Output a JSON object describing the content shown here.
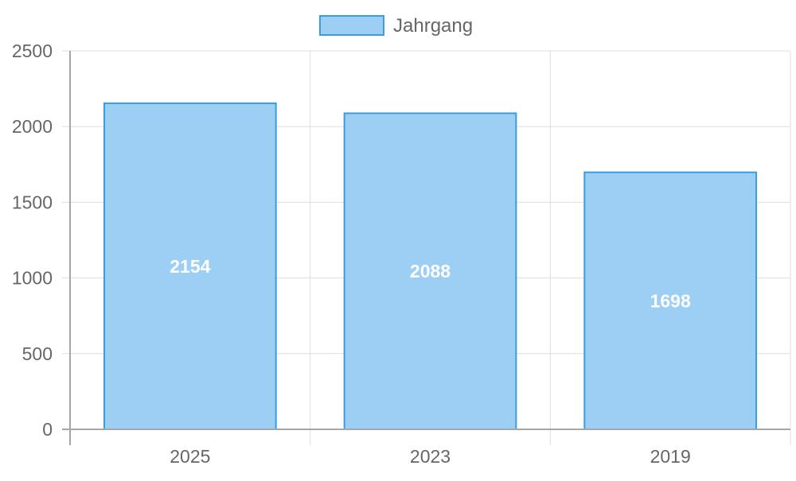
{
  "chart_data": {
    "type": "bar",
    "categories": [
      "2025",
      "2023",
      "2019"
    ],
    "series": [
      {
        "name": "Jahrgang",
        "values": [
          2154,
          2088,
          1698
        ]
      }
    ],
    "title": "",
    "xlabel": "",
    "ylabel": "",
    "ylim": [
      0,
      2500
    ],
    "yticks": [
      0,
      500,
      1000,
      1500,
      2000,
      2500
    ],
    "grid": true,
    "legend_position": "top",
    "data_labels": "inside-bar-center",
    "colors": {
      "bar_fill": "#9ccff3",
      "bar_stroke": "#3a9ddd",
      "grid": "#dddddd",
      "axis": "#a6a6a6",
      "tick_text": "#666666",
      "data_label_text": "#ffffff"
    }
  }
}
